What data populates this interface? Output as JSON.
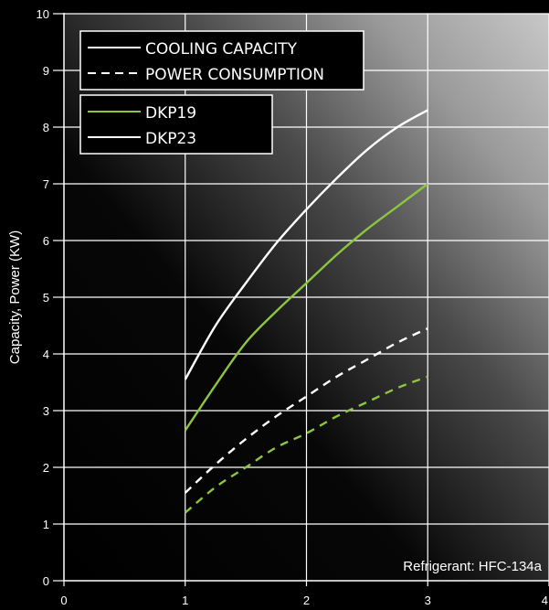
{
  "chart_data": {
    "type": "line",
    "title": "",
    "xlabel": "",
    "ylabel": "Capacity, Power (KW)",
    "xlim": [
      0,
      4
    ],
    "ylim": [
      0,
      10
    ],
    "x_ticks": [
      "0",
      "1",
      "2",
      "3",
      "4"
    ],
    "y_ticks": [
      "0",
      "1",
      "2",
      "3",
      "4",
      "5",
      "6",
      "7",
      "8",
      "9",
      "10"
    ],
    "grid": true,
    "annotation": "Refrigerant: HFC-134a",
    "legend_style": {
      "position": "top-left",
      "items": [
        {
          "label": "COOLING CAPACITY",
          "dash": "solid"
        },
        {
          "label": "POWER CONSUMPTION",
          "dash": "dashed"
        }
      ]
    },
    "legend_models": {
      "position": "top-left",
      "items": [
        {
          "label": "DKP19",
          "color": "#8cc63f"
        },
        {
          "label": "DKP23",
          "color": "#ffffff"
        }
      ]
    },
    "series": [
      {
        "model": "DKP23",
        "measure": "cooling capacity",
        "color": "#ffffff",
        "dash": "solid",
        "x": [
          1.0,
          1.25,
          1.5,
          1.75,
          2.0,
          2.25,
          2.5,
          2.75,
          3.0
        ],
        "y": [
          3.55,
          4.5,
          5.25,
          5.95,
          6.55,
          7.1,
          7.6,
          8.0,
          8.3
        ]
      },
      {
        "model": "DKP19",
        "measure": "cooling capacity",
        "color": "#8cc63f",
        "dash": "solid",
        "x": [
          1.0,
          1.25,
          1.5,
          1.75,
          2.0,
          2.25,
          2.5,
          2.75,
          3.0
        ],
        "y": [
          2.65,
          3.45,
          4.2,
          4.75,
          5.25,
          5.75,
          6.2,
          6.6,
          7.0
        ]
      },
      {
        "model": "DKP23",
        "measure": "power consumption",
        "color": "#ffffff",
        "dash": "dashed",
        "x": [
          1.0,
          1.25,
          1.5,
          1.75,
          2.0,
          2.25,
          2.5,
          2.75,
          3.0
        ],
        "y": [
          1.55,
          2.05,
          2.5,
          2.9,
          3.25,
          3.6,
          3.9,
          4.2,
          4.45
        ]
      },
      {
        "model": "DKP19",
        "measure": "power consumption",
        "color": "#8cc63f",
        "dash": "dashed",
        "x": [
          1.0,
          1.25,
          1.5,
          1.75,
          2.0,
          2.25,
          2.5,
          2.75,
          3.0
        ],
        "y": [
          1.2,
          1.65,
          2.0,
          2.35,
          2.6,
          2.9,
          3.15,
          3.4,
          3.6
        ]
      }
    ]
  }
}
